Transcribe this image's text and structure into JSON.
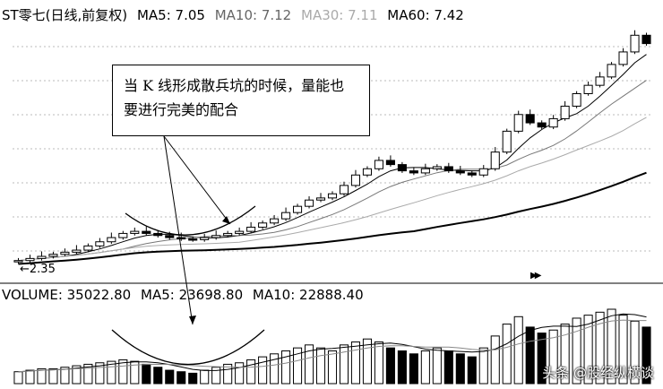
{
  "price_header": {
    "title": "ST零七(日线,前复权)",
    "ma5": "MA5: 7.05",
    "ma10": "MA10: 7.12",
    "ma30": "MA30: 7.11",
    "ma60": "MA60: 7.42"
  },
  "volume_header": {
    "volume": "VOLUME: 35022.80",
    "ma5": "MA5: 23698.80",
    "ma10": "MA10: 22888.40"
  },
  "annotation": "当 K 线形成散兵坑的时候，量能也要进行完美的配合",
  "low_label": "←2.35",
  "watermark": "头条 @股经纵横谈",
  "icons": {
    "fast_forward": "fast-forward-icon"
  },
  "colors": {
    "header_ma5": "#000000",
    "header_ma10": "#666666",
    "header_ma30": "#aaaaaa",
    "header_ma60": "#000000"
  },
  "chart_data": {
    "type": "candlestick",
    "title": "ST零七(日线,前复权)",
    "price_range": [
      2.2,
      8.0
    ],
    "lowest_price": 2.35,
    "close": [
      2.4,
      2.45,
      2.5,
      2.55,
      2.6,
      2.65,
      2.75,
      2.85,
      2.95,
      3.05,
      3.1,
      3.05,
      3.0,
      2.95,
      2.92,
      2.9,
      2.95,
      3.0,
      3.05,
      3.1,
      3.2,
      3.3,
      3.4,
      3.55,
      3.7,
      3.85,
      3.9,
      4.0,
      4.2,
      4.45,
      4.6,
      4.8,
      4.7,
      4.55,
      4.5,
      4.6,
      4.65,
      4.55,
      4.5,
      4.45,
      4.6,
      5.0,
      5.5,
      5.9,
      5.7,
      5.6,
      5.8,
      6.1,
      6.4,
      6.6,
      6.8,
      7.1,
      7.4,
      7.8,
      7.6
    ],
    "volume_series": [
      8,
      9,
      10,
      10,
      11,
      12,
      13,
      14,
      15,
      16,
      15,
      13,
      11,
      9,
      8,
      7,
      9,
      11,
      13,
      14,
      16,
      18,
      20,
      22,
      24,
      26,
      24,
      22,
      26,
      28,
      30,
      28,
      24,
      22,
      20,
      22,
      24,
      22,
      20,
      18,
      24,
      32,
      40,
      45,
      38,
      34,
      36,
      40,
      44,
      46,
      48,
      50,
      46,
      42,
      38
    ],
    "series": [
      {
        "name": "MA5",
        "value": 7.05
      },
      {
        "name": "MA10",
        "value": 7.12
      },
      {
        "name": "MA30",
        "value": 7.11
      },
      {
        "name": "MA60",
        "value": 7.42
      }
    ],
    "volume": {
      "name": "VOLUME",
      "value": 35022.8,
      "ma5": 23698.8,
      "ma10": 22888.4
    }
  }
}
